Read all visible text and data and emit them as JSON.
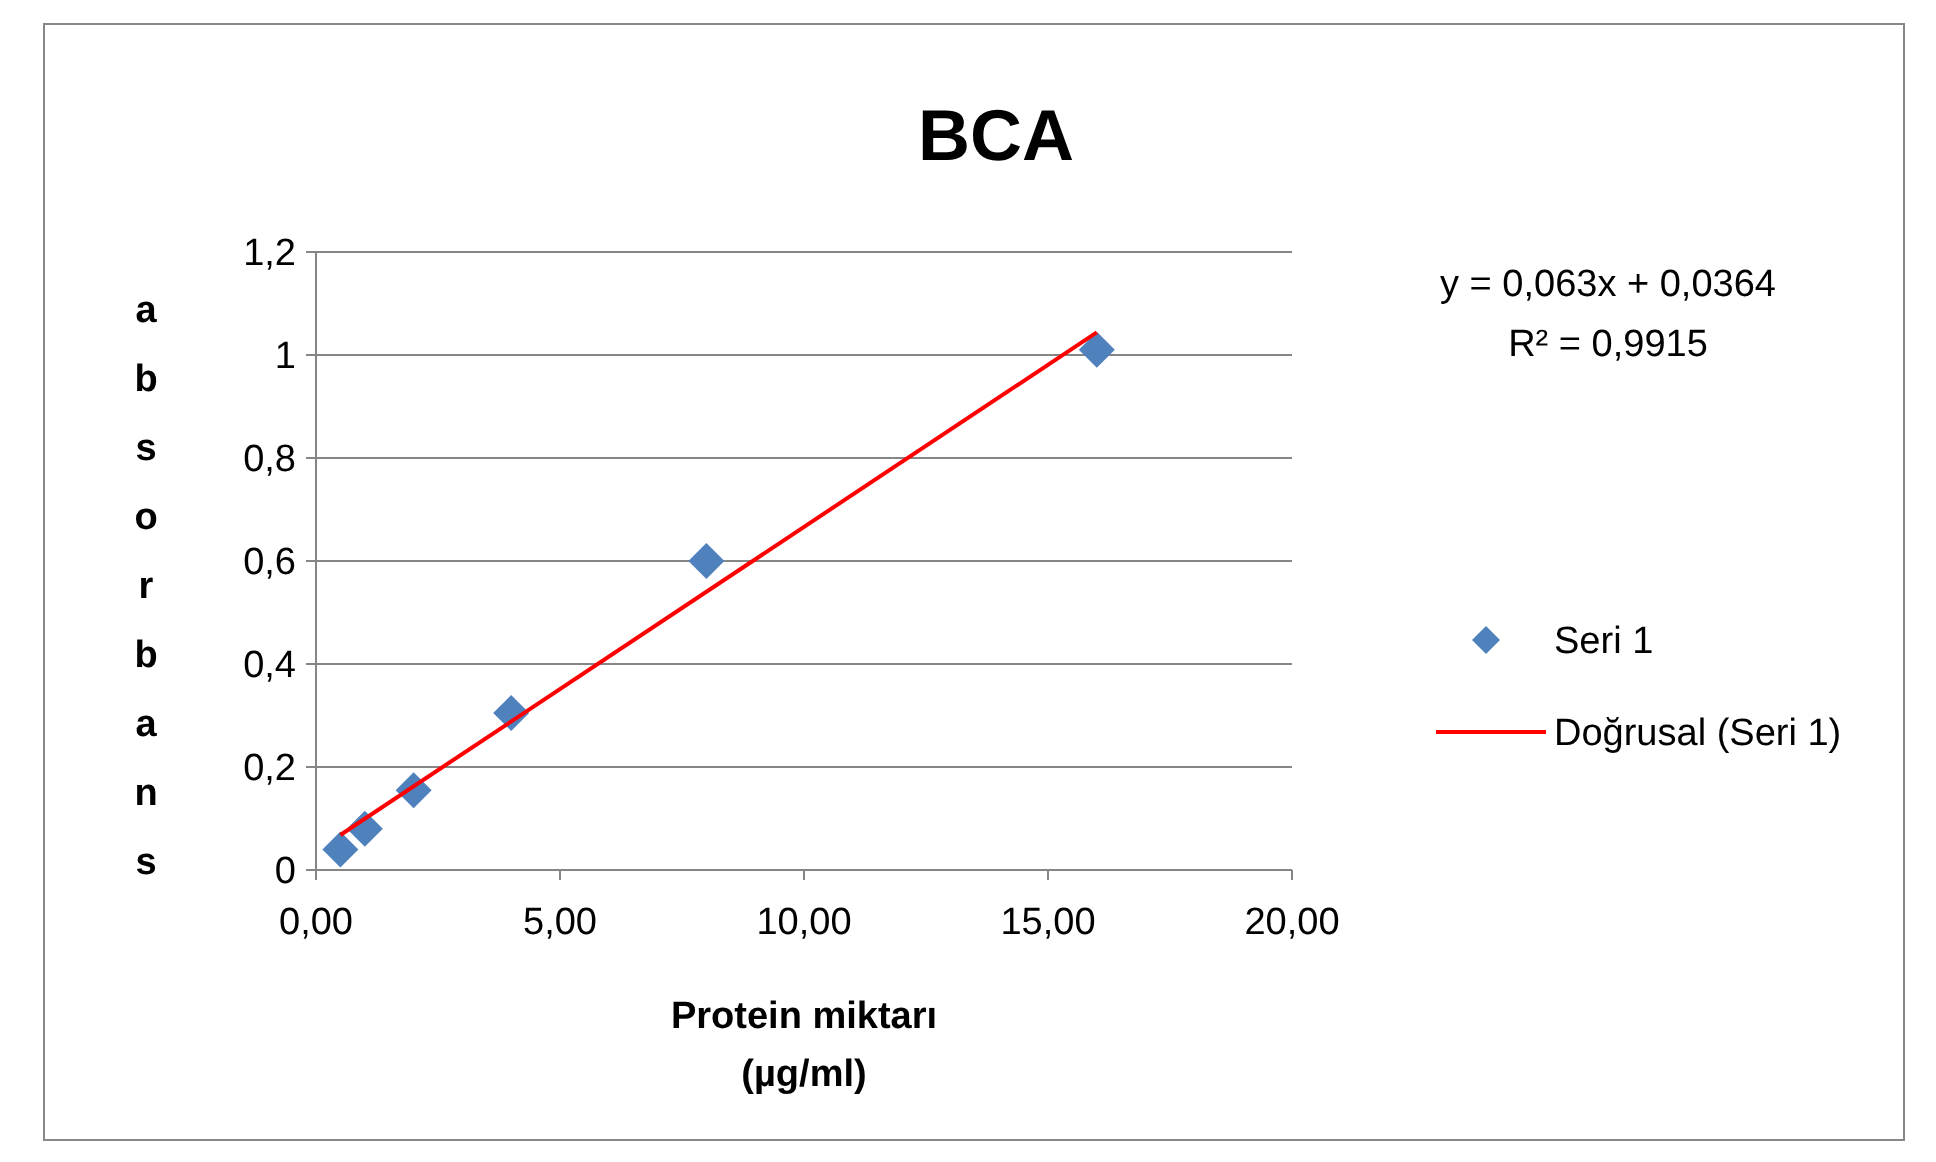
{
  "chart_data": {
    "type": "scatter",
    "title": "BCA",
    "xlabel": "Protein miktarı (µg/ml)",
    "ylabel": "absorbans",
    "annotations": [
      "y = 0,063x + 0,0364",
      "R² = 0,9915"
    ],
    "series": [
      {
        "name": "Seri 1",
        "color": "#4f81bd",
        "marker": "diamond",
        "x": [
          0.5,
          1,
          2,
          4,
          8,
          16
        ],
        "values": [
          0.04,
          0.08,
          0.155,
          0.305,
          0.6,
          1.01
        ]
      },
      {
        "name": "Doğrusal (Seri 1)",
        "type": "line",
        "color": "#ff0000",
        "marker": "none",
        "line_style": "solid",
        "x": [
          0.5,
          16
        ],
        "values": [
          0.068,
          1.044
        ]
      }
    ],
    "xlim": [
      0,
      20
    ],
    "xticks": [
      {
        "value": 0,
        "label": "0,00"
      },
      {
        "value": 5,
        "label": "5,00"
      },
      {
        "value": 10,
        "label": "10,00"
      },
      {
        "value": 15,
        "label": "15,00"
      },
      {
        "value": 20,
        "label": "20,00"
      }
    ],
    "ylim": [
      0,
      1.2
    ],
    "yticks": [
      0,
      {
        "value": 0.2,
        "label": "0,2"
      },
      {
        "value": 0.4,
        "label": "0,4"
      },
      {
        "value": 0.6,
        "label": "0,6"
      },
      {
        "value": 0.8,
        "label": "0,8"
      },
      1,
      {
        "value": 1.2,
        "label": "1,2"
      }
    ],
    "grid": "y",
    "legend": "right"
  }
}
